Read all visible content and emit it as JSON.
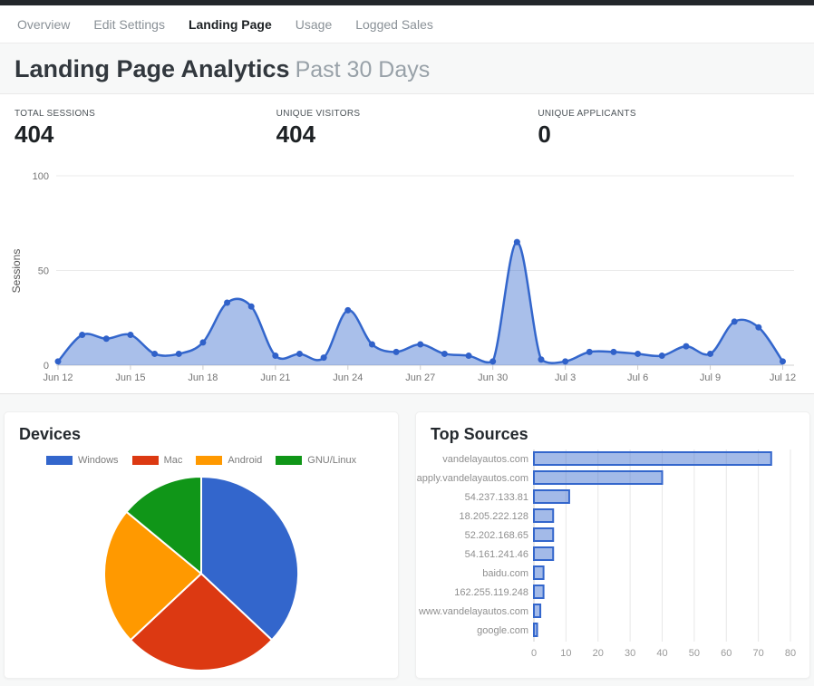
{
  "nav": {
    "items": [
      {
        "label": "Overview",
        "active": false
      },
      {
        "label": "Edit Settings",
        "active": false
      },
      {
        "label": "Landing Page",
        "active": true
      },
      {
        "label": "Usage",
        "active": false
      },
      {
        "label": "Logged Sales",
        "active": false
      }
    ]
  },
  "header": {
    "title": "Landing Page Analytics",
    "subtitle": "Past 30 Days"
  },
  "stats": [
    {
      "label": "TOTAL SESSIONS",
      "value": "404"
    },
    {
      "label": "UNIQUE VISITORS",
      "value": "404"
    },
    {
      "label": "UNIQUE APPLICANTS",
      "value": "0"
    }
  ],
  "colors": {
    "accent_blue": "#3366cc",
    "area_fill": "rgba(51,102,204,0.42)",
    "bar_fill": "rgba(51,102,204,0.45)",
    "grid_light": "#ebebeb",
    "axis_text": "#757575"
  },
  "chart_data": [
    {
      "type": "area",
      "name": "sessions-over-time",
      "ylabel": "Sessions",
      "ylim": [
        0,
        100
      ],
      "yticks": [
        0,
        50,
        100
      ],
      "x": [
        "Jun 12",
        "Jun 13",
        "Jun 14",
        "Jun 15",
        "Jun 16",
        "Jun 17",
        "Jun 18",
        "Jun 19",
        "Jun 20",
        "Jun 21",
        "Jun 22",
        "Jun 23",
        "Jun 24",
        "Jun 25",
        "Jun 26",
        "Jun 27",
        "Jun 28",
        "Jun 29",
        "Jun 30",
        "Jul 1",
        "Jul 2",
        "Jul 3",
        "Jul 4",
        "Jul 5",
        "Jul 6",
        "Jul 7",
        "Jul 8",
        "Jul 9",
        "Jul 10",
        "Jul 11",
        "Jul 12"
      ],
      "values": [
        2,
        16,
        14,
        16,
        6,
        6,
        12,
        33,
        31,
        5,
        6,
        4,
        29,
        11,
        7,
        11,
        6,
        5,
        2,
        65,
        3,
        2,
        7,
        7,
        6,
        5,
        10,
        6,
        23,
        20,
        2
      ],
      "x_tick_labels": [
        "Jun 12",
        "Jun 15",
        "Jun 18",
        "Jun 21",
        "Jun 24",
        "Jun 27",
        "Jun 30",
        "Jul 3",
        "Jul 6",
        "Jul 9",
        "Jul 12"
      ],
      "line_color": "#3366cc",
      "point_color": "#3061c9",
      "grid": true,
      "legend_position": "none"
    },
    {
      "type": "pie",
      "name": "devices",
      "title": "Devices",
      "labels": [
        "Windows",
        "Mac",
        "Android",
        "GNU/Linux"
      ],
      "values_percent": [
        37,
        26,
        23,
        14
      ],
      "colors": [
        "#3366cc",
        "#dc3912",
        "#ff9900",
        "#109618"
      ],
      "legend_position": "top"
    },
    {
      "type": "bar",
      "name": "top-sources",
      "title": "Top Sources",
      "orientation": "horizontal",
      "categories": [
        "vandelayautos.com",
        "apply.vandelayautos.com",
        "54.237.133.81",
        "18.205.222.128",
        "52.202.168.65",
        "54.161.241.46",
        "baidu.com",
        "162.255.119.248",
        "www.vandelayautos.com",
        "google.com"
      ],
      "values": [
        74,
        40,
        11,
        6,
        6,
        6,
        3,
        3,
        2,
        1
      ],
      "xlim": [
        0,
        80
      ],
      "xticks": [
        0,
        10,
        20,
        30,
        40,
        50,
        60,
        70,
        80
      ],
      "grid": true,
      "legend_position": "none"
    }
  ]
}
